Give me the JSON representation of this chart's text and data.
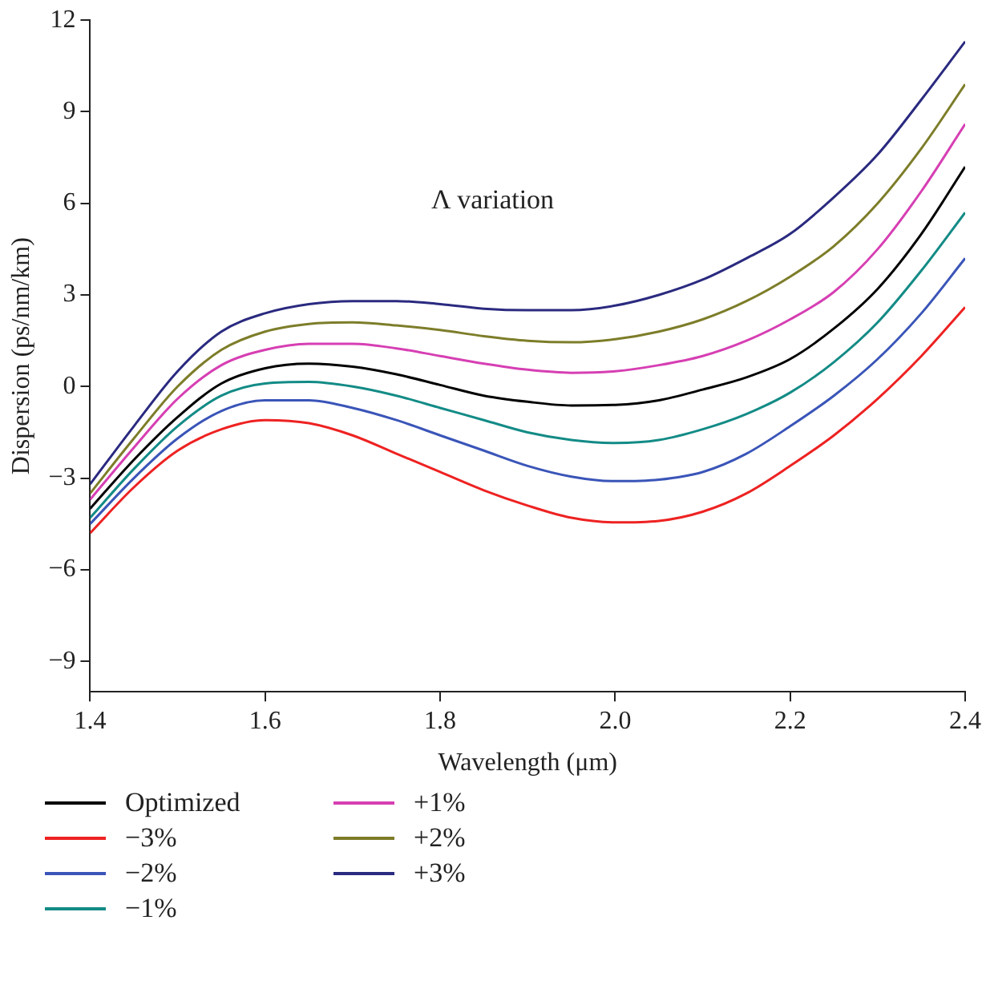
{
  "chart_data": {
    "type": "line",
    "xlabel": "Wavelength (μm)",
    "ylabel": "Dispersion (ps/nm/km)",
    "annotations": [
      "Λ variation"
    ],
    "x": [
      1.4,
      1.45,
      1.5,
      1.55,
      1.6,
      1.65,
      1.7,
      1.75,
      1.8,
      1.85,
      1.9,
      1.95,
      2.0,
      2.05,
      2.1,
      2.15,
      2.2,
      2.25,
      2.3,
      2.35,
      2.4
    ],
    "xlim": [
      1.4,
      2.4
    ],
    "xticks": [
      1.4,
      1.6,
      1.8,
      {
        "value": 2,
        "label": "2.0"
      },
      2.2,
      2.4
    ],
    "ylim": [
      -10,
      12
    ],
    "yticks": [
      -9,
      -6,
      -3,
      0,
      3,
      6,
      9,
      12
    ],
    "grid": false,
    "legend": "bottom",
    "marker": "none",
    "line_style": "solid",
    "series": [
      {
        "name": "Optimized",
        "color": "#000000",
        "values": [
          -4.0,
          -2.4,
          -1.0,
          0.1,
          0.6,
          0.75,
          0.65,
          0.4,
          0.05,
          -0.3,
          -0.5,
          -0.62,
          -0.6,
          -0.45,
          -0.1,
          0.3,
          0.9,
          1.9,
          3.2,
          5.0,
          7.2
        ]
      },
      {
        "name": "−3%",
        "color": "#ee2222",
        "values": [
          -4.8,
          -3.3,
          -2.1,
          -1.4,
          -1.1,
          -1.2,
          -1.6,
          -2.2,
          -2.8,
          -3.4,
          -3.9,
          -4.3,
          -4.45,
          -4.4,
          -4.1,
          -3.5,
          -2.6,
          -1.6,
          -0.4,
          1.0,
          2.6
        ]
      },
      {
        "name": "−2%",
        "color": "#3a55b8",
        "values": [
          -4.5,
          -3.0,
          -1.7,
          -0.8,
          -0.45,
          -0.45,
          -0.7,
          -1.1,
          -1.6,
          -2.1,
          -2.6,
          -2.95,
          -3.1,
          -3.05,
          -2.8,
          -2.2,
          -1.3,
          -0.3,
          0.9,
          2.4,
          4.2
        ]
      },
      {
        "name": "−1%",
        "color": "#138b86",
        "values": [
          -4.3,
          -2.7,
          -1.3,
          -0.3,
          0.1,
          0.15,
          0.0,
          -0.3,
          -0.7,
          -1.1,
          -1.5,
          -1.75,
          -1.85,
          -1.75,
          -1.4,
          -0.9,
          -0.2,
          0.8,
          2.1,
          3.8,
          5.7
        ]
      },
      {
        "name": "+1%",
        "color": "#d63fb3",
        "values": [
          -3.7,
          -2.0,
          -0.4,
          0.7,
          1.2,
          1.4,
          1.4,
          1.25,
          1.0,
          0.75,
          0.55,
          0.45,
          0.5,
          0.7,
          1.0,
          1.5,
          2.2,
          3.1,
          4.5,
          6.4,
          8.6
        ]
      },
      {
        "name": "+2%",
        "color": "#7d7d2a",
        "values": [
          -3.5,
          -1.7,
          0.0,
          1.2,
          1.8,
          2.05,
          2.1,
          2.0,
          1.85,
          1.65,
          1.5,
          1.45,
          1.55,
          1.8,
          2.2,
          2.8,
          3.6,
          4.6,
          6.0,
          7.8,
          9.9
        ]
      },
      {
        "name": "+3%",
        "color": "#2a2a80",
        "values": [
          -3.2,
          -1.3,
          0.5,
          1.8,
          2.4,
          2.7,
          2.8,
          2.8,
          2.7,
          2.55,
          2.5,
          2.5,
          2.65,
          3.0,
          3.5,
          4.2,
          5.0,
          6.2,
          7.6,
          9.4,
          11.3
        ]
      }
    ]
  }
}
